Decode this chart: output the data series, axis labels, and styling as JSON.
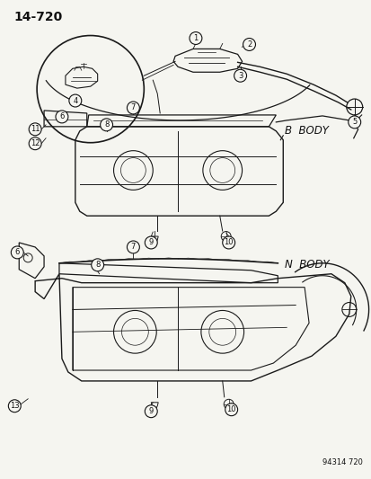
{
  "page_number": "14-720",
  "catalog_number": "94314 720",
  "bg": "#f5f5f0",
  "lc": "#1a1a1a",
  "tc": "#111111",
  "b_body": "B  BODY",
  "n_body": "N  BODY",
  "figsize": [
    4.14,
    5.33
  ],
  "dpi": 100
}
